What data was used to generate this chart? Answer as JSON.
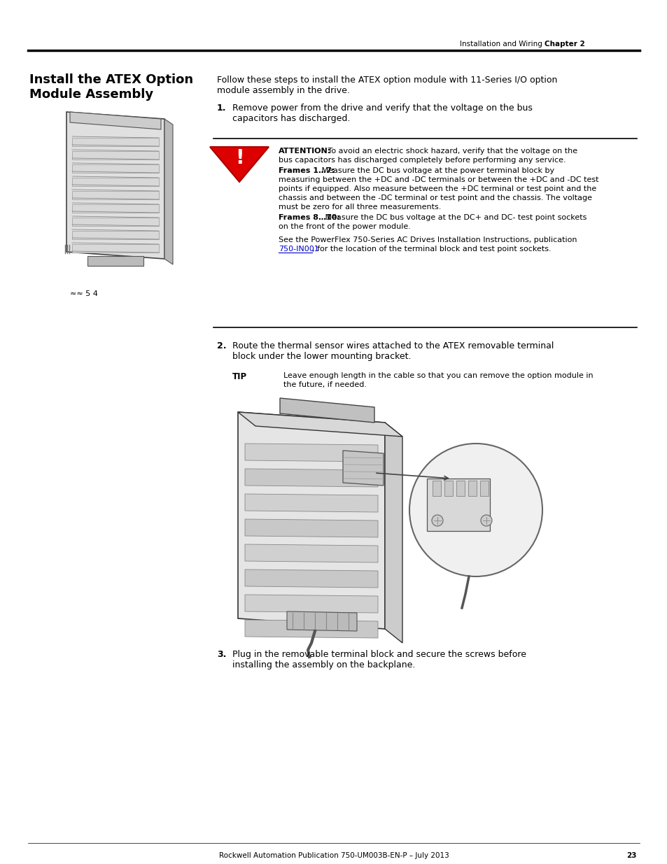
{
  "page_bg": "#ffffff",
  "header_text": "Installation and Wiring",
  "header_chapter": "Chapter 2",
  "footer_text": "Rockwell Automation Publication 750-UM003B-EN-P – July 2013",
  "footer_page": "23",
  "section_title_line1": "Install the ATEX Option",
  "section_title_line2": "Module Assembly",
  "intro_line1": "Follow these steps to install the ATEX option module with 11-Series I/O option",
  "intro_line2": "module assembly in the drive.",
  "step1_num": "1.",
  "step1_line1": "Remove power from the drive and verify that the voltage on the bus",
  "step1_line2": "capacitors has discharged.",
  "attention_bold": "ATTENTION:",
  "attention_line1": " To avoid an electric shock hazard, verify that the voltage on the",
  "attention_line2": "bus capacitors has discharged completely before performing any service.",
  "frames17_bold": "Frames 1…7:",
  "frames17_line1": " Measure the DC bus voltage at the power terminal block by",
  "frames17_line2": "measuring between the +DC and -DC terminals or between the +DC and -DC test",
  "frames17_line3": "points if equipped. Also measure between the +DC terminal or test point and the",
  "frames17_line4": "chassis and between the -DC terminal or test point and the chassis. The voltage",
  "frames17_line5": "must be zero for all three measurements.",
  "frames810_bold": "Frames 8…10:",
  "frames810_line1": " Measure the DC bus voltage at the DC+ and DC- test point sockets",
  "frames810_line2": "on the front of the power module.",
  "see_line1": "See the PowerFlex 750-Series AC Drives Installation Instructions, publication",
  "see_link": "750-IN001",
  "see_line2": ", for the location of the terminal block and test point sockets.",
  "step2_num": "2.",
  "step2_line1": "Route the thermal sensor wires attached to the ATEX removable terminal",
  "step2_line2": "block under the lower mounting bracket.",
  "tip_label": "TIP",
  "tip_line1": "Leave enough length in the cable so that you can remove the option module in",
  "tip_line2": "the future, if needed.",
  "step3_num": "3.",
  "step3_line1": "Plug in the removable terminal block and secure the screws before",
  "step3_line2": "installing the assembly on the backplane.",
  "link_color": "#0000cc",
  "warning_fill": "#dd0000",
  "warning_edge": "#aa0000"
}
